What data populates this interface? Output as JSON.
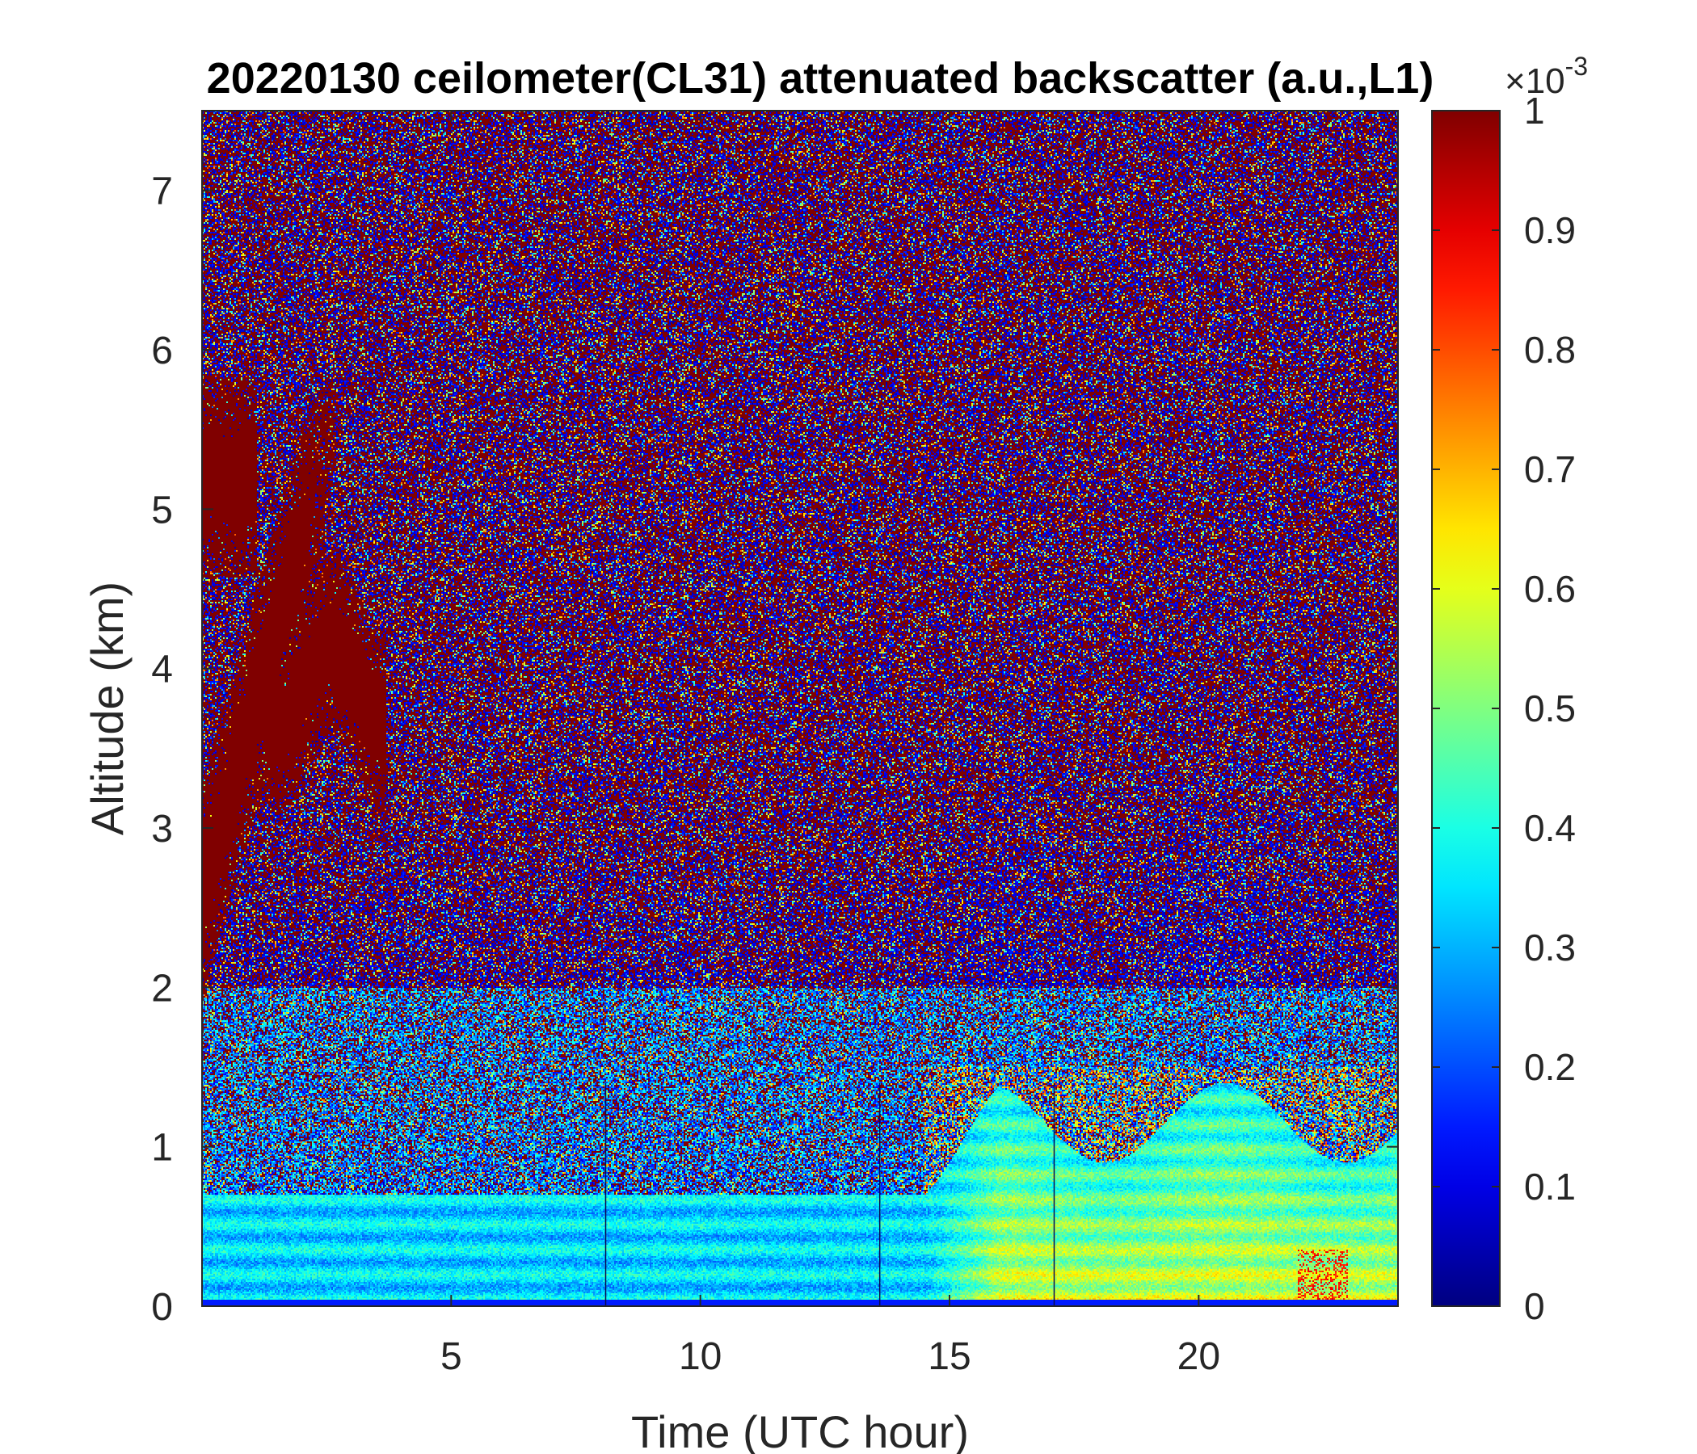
{
  "chart_data": {
    "type": "heatmap",
    "title": "20220130 ceilometer(CL31) attenuated backscatter (a.u.,L1)",
    "xlabel": "Time (UTC hour)",
    "ylabel": "Altitude (km)",
    "xlim": [
      0,
      24
    ],
    "ylim": [
      0,
      7.5
    ],
    "x_ticks": [
      5,
      10,
      15,
      20
    ],
    "y_ticks": [
      0,
      1,
      2,
      3,
      4,
      5,
      6,
      7
    ],
    "colormap": "jet",
    "colorbar": {
      "range": [
        0,
        1
      ],
      "ticks": [
        0,
        0.1,
        0.2,
        0.3,
        0.4,
        0.5,
        0.6,
        0.7,
        0.8,
        0.9,
        1
      ],
      "tick_labels": [
        "0",
        "0.1",
        "0.2",
        "0.3",
        "0.4",
        "0.5",
        "0.6",
        "0.7",
        "0.8",
        "0.9",
        "1"
      ],
      "exponent_label": "×10",
      "exponent_power": "-3",
      "position": "right"
    },
    "grid": false,
    "features": [
      {
        "name": "surface aerosol layer",
        "x_range": [
          0,
          24
        ],
        "alt_top": 0.7,
        "level": 0.38
      },
      {
        "name": "enhanced afternoon aerosol",
        "x_range": [
          14.5,
          24
        ],
        "alt_top": 1.4,
        "level": 0.62
      },
      {
        "name": "elevated aerosol plume",
        "x_range": [
          0,
          3.7
        ],
        "alt_range": [
          2.3,
          5.8
        ],
        "level": 1.0
      },
      {
        "name": "background noise",
        "alt_range": [
          2,
          7.5
        ],
        "level": "mixed 0 / 1"
      }
    ],
    "vertical_gaps_hours": [
      8.1,
      13.6,
      17.1
    ]
  }
}
